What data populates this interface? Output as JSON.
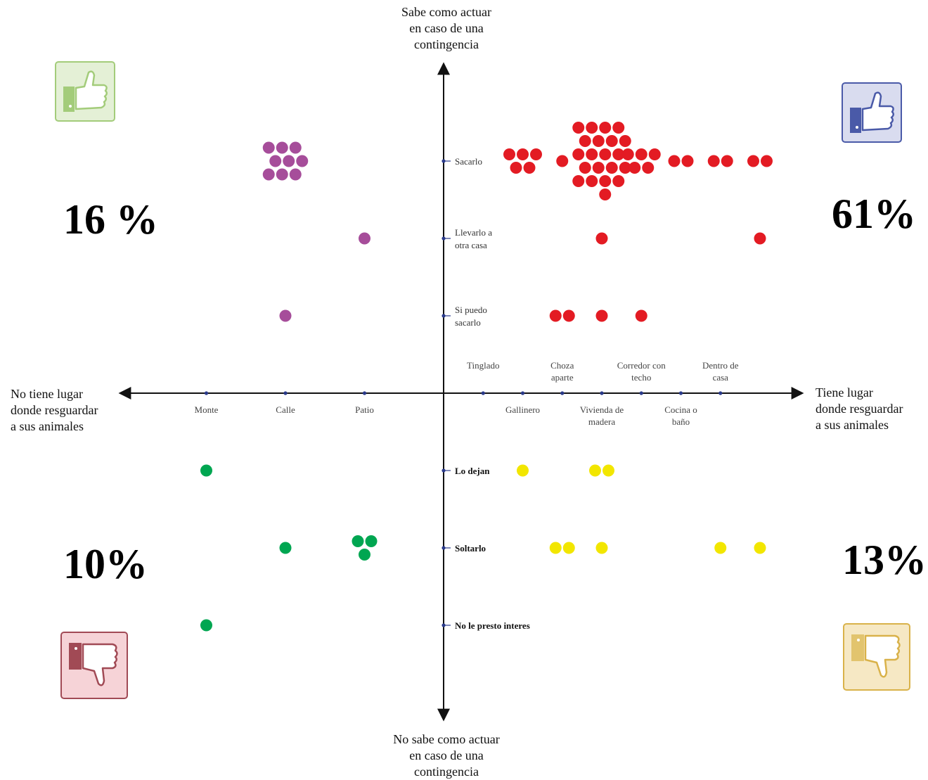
{
  "axes": {
    "top": "Sabe como actuar\nen caso de una\ncontingencia",
    "bottom": "No sabe como actuar\nen caso de una\ncontingencia",
    "left": "No tiene lugar\ndonde resguardar\na sus animales",
    "right": "Tiene lugar\ndonde resguardar\na sus animales"
  },
  "quadrants": {
    "top_left": {
      "percent": "16 %",
      "color": "#a3cc7a",
      "icon": "thumbs-up-icon"
    },
    "top_right": {
      "percent": "61%",
      "color": "#4a5aa8",
      "icon": "thumbs-up-icon"
    },
    "bottom_left": {
      "percent": "10%",
      "color": "#a14a55",
      "icon": "thumbs-down-icon"
    },
    "bottom_right": {
      "percent": "13%",
      "color": "#d9b24a",
      "icon": "thumbs-down-icon"
    }
  },
  "chart_data": {
    "type": "scatter",
    "title": "",
    "x_negative_categories": [
      "Patio",
      "Calle",
      "Monte"
    ],
    "x_positive_categories": [
      "Tinglado",
      "Gallinero",
      "Choza aparte",
      "Vivienda de madera",
      "Corredor con techo",
      "Cocina o baño",
      "Dentro de casa"
    ],
    "y_positive_categories": [
      "Si puedo sacarlo",
      "Llevarlo a otra casa",
      "Sacarlo"
    ],
    "y_negative_categories": [
      "Lo dejan",
      "Soltarlo",
      "No le presto interes"
    ],
    "series": [
      {
        "color": "#a64d9a",
        "points": [
          {
            "x": -2,
            "y": 3,
            "count": 9
          },
          {
            "x": -1,
            "y": 2,
            "count": 1
          },
          {
            "x": -2,
            "y": 1,
            "count": 1
          }
        ]
      },
      {
        "color": "#e31b23",
        "points": [
          {
            "x": 1,
            "y": 3,
            "count": 5
          },
          {
            "x": 1.5,
            "y": 3,
            "count": 1
          },
          {
            "x": 2,
            "y": 3,
            "count": 21
          },
          {
            "x": 2.5,
            "y": 3,
            "count": 5
          },
          {
            "x": 3,
            "y": 3,
            "count": 2
          },
          {
            "x": 3.5,
            "y": 3,
            "count": 2
          },
          {
            "x": 4,
            "y": 3,
            "count": 2
          },
          {
            "x": 2,
            "y": 2,
            "count": 1
          },
          {
            "x": 4,
            "y": 2,
            "count": 1
          },
          {
            "x": 1.5,
            "y": 1,
            "count": 2
          },
          {
            "x": 2,
            "y": 1,
            "count": 1
          },
          {
            "x": 2.5,
            "y": 1,
            "count": 1
          }
        ]
      },
      {
        "color": "#00a651",
        "points": [
          {
            "x": -3,
            "y": -1,
            "count": 1
          },
          {
            "x": -2,
            "y": -2,
            "count": 1
          },
          {
            "x": -1,
            "y": -2,
            "count": 3
          },
          {
            "x": -3,
            "y": -3,
            "count": 1
          }
        ]
      },
      {
        "color": "#f2e600",
        "points": [
          {
            "x": 1,
            "y": -1,
            "count": 1
          },
          {
            "x": 2,
            "y": -1,
            "count": 2
          },
          {
            "x": 1.5,
            "y": -2,
            "count": 2
          },
          {
            "x": 2,
            "y": -2,
            "count": 1
          },
          {
            "x": 3.5,
            "y": -2,
            "count": 1
          },
          {
            "x": 4,
            "y": -2,
            "count": 1
          }
        ]
      }
    ]
  }
}
